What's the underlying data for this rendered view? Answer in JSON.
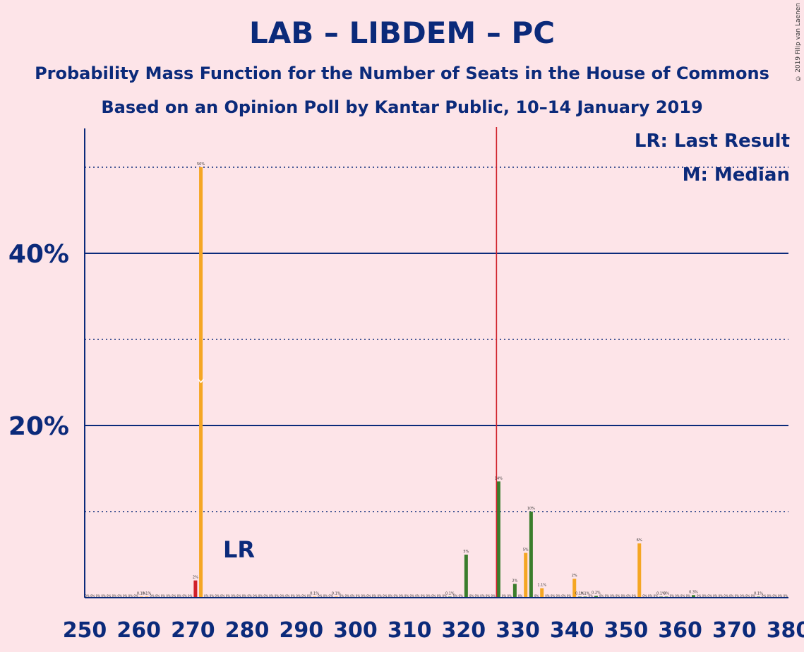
{
  "title": "LAB – LIBDEM – PC",
  "subtitle1": "Probability Mass Function for the Number of Seats in the House of Commons",
  "subtitle2": "Based on an Opinion Poll by Kantar Public, 10–14 January 2019",
  "copyright": "© 2019 Filip van Laenen",
  "legend": {
    "lr": "LR: Last Result",
    "m": "M: Median"
  },
  "lr_label": "LR",
  "colors": {
    "background": "#fde4e8",
    "axis": "#0b2a7a",
    "median": "#f5a623",
    "last_result": "#d0202a",
    "bar": "#3a7d2c",
    "majority_line": "#d0202a"
  },
  "chart_data": {
    "type": "bar",
    "xlabel": "",
    "ylabel": "",
    "xlim": [
      250,
      380
    ],
    "ylim": [
      0,
      54
    ],
    "x_ticks": [
      "250",
      "260",
      "270",
      "280",
      "290",
      "300",
      "310",
      "320",
      "330",
      "340",
      "350",
      "360",
      "370",
      "380"
    ],
    "y_ticks": [
      "20%",
      "40%"
    ],
    "majority_line": 326,
    "median_seat": 271,
    "last_result_seat": 270,
    "bars": [
      {
        "x": 260,
        "value": 0.1,
        "label": "0.1%"
      },
      {
        "x": 261,
        "value": 0.1,
        "label": "0.1%"
      },
      {
        "x": 270,
        "value": 2,
        "label": "2%"
      },
      {
        "x": 271,
        "value": 50,
        "label": "50%"
      },
      {
        "x": 292,
        "value": 0.1,
        "label": "0.1%"
      },
      {
        "x": 296,
        "value": 0.1,
        "label": "0.1%"
      },
      {
        "x": 317,
        "value": 0.1,
        "label": "0.1%"
      },
      {
        "x": 320,
        "value": 5,
        "label": "5%"
      },
      {
        "x": 326,
        "value": 13.5,
        "label": "14%"
      },
      {
        "x": 329,
        "value": 1.6,
        "label": "2%"
      },
      {
        "x": 331,
        "value": 5.2,
        "label": "5%"
      },
      {
        "x": 332,
        "value": 10,
        "label": "10%"
      },
      {
        "x": 334,
        "value": 1.1,
        "label": "1.1%"
      },
      {
        "x": 340,
        "value": 2.2,
        "label": "2%"
      },
      {
        "x": 341,
        "value": 0.1,
        "label": "0.1%"
      },
      {
        "x": 342,
        "value": 0.1,
        "label": "0.1%"
      },
      {
        "x": 344,
        "value": 0.2,
        "label": "0.2%"
      },
      {
        "x": 352,
        "value": 6.3,
        "label": "6%"
      },
      {
        "x": 356,
        "value": 0.1,
        "label": "0.1%"
      },
      {
        "x": 357,
        "value": 0.1,
        "label": "0%"
      },
      {
        "x": 362,
        "value": 0.3,
        "label": "0.3%"
      },
      {
        "x": 374,
        "value": 0.1,
        "label": "0.1%"
      }
    ]
  }
}
